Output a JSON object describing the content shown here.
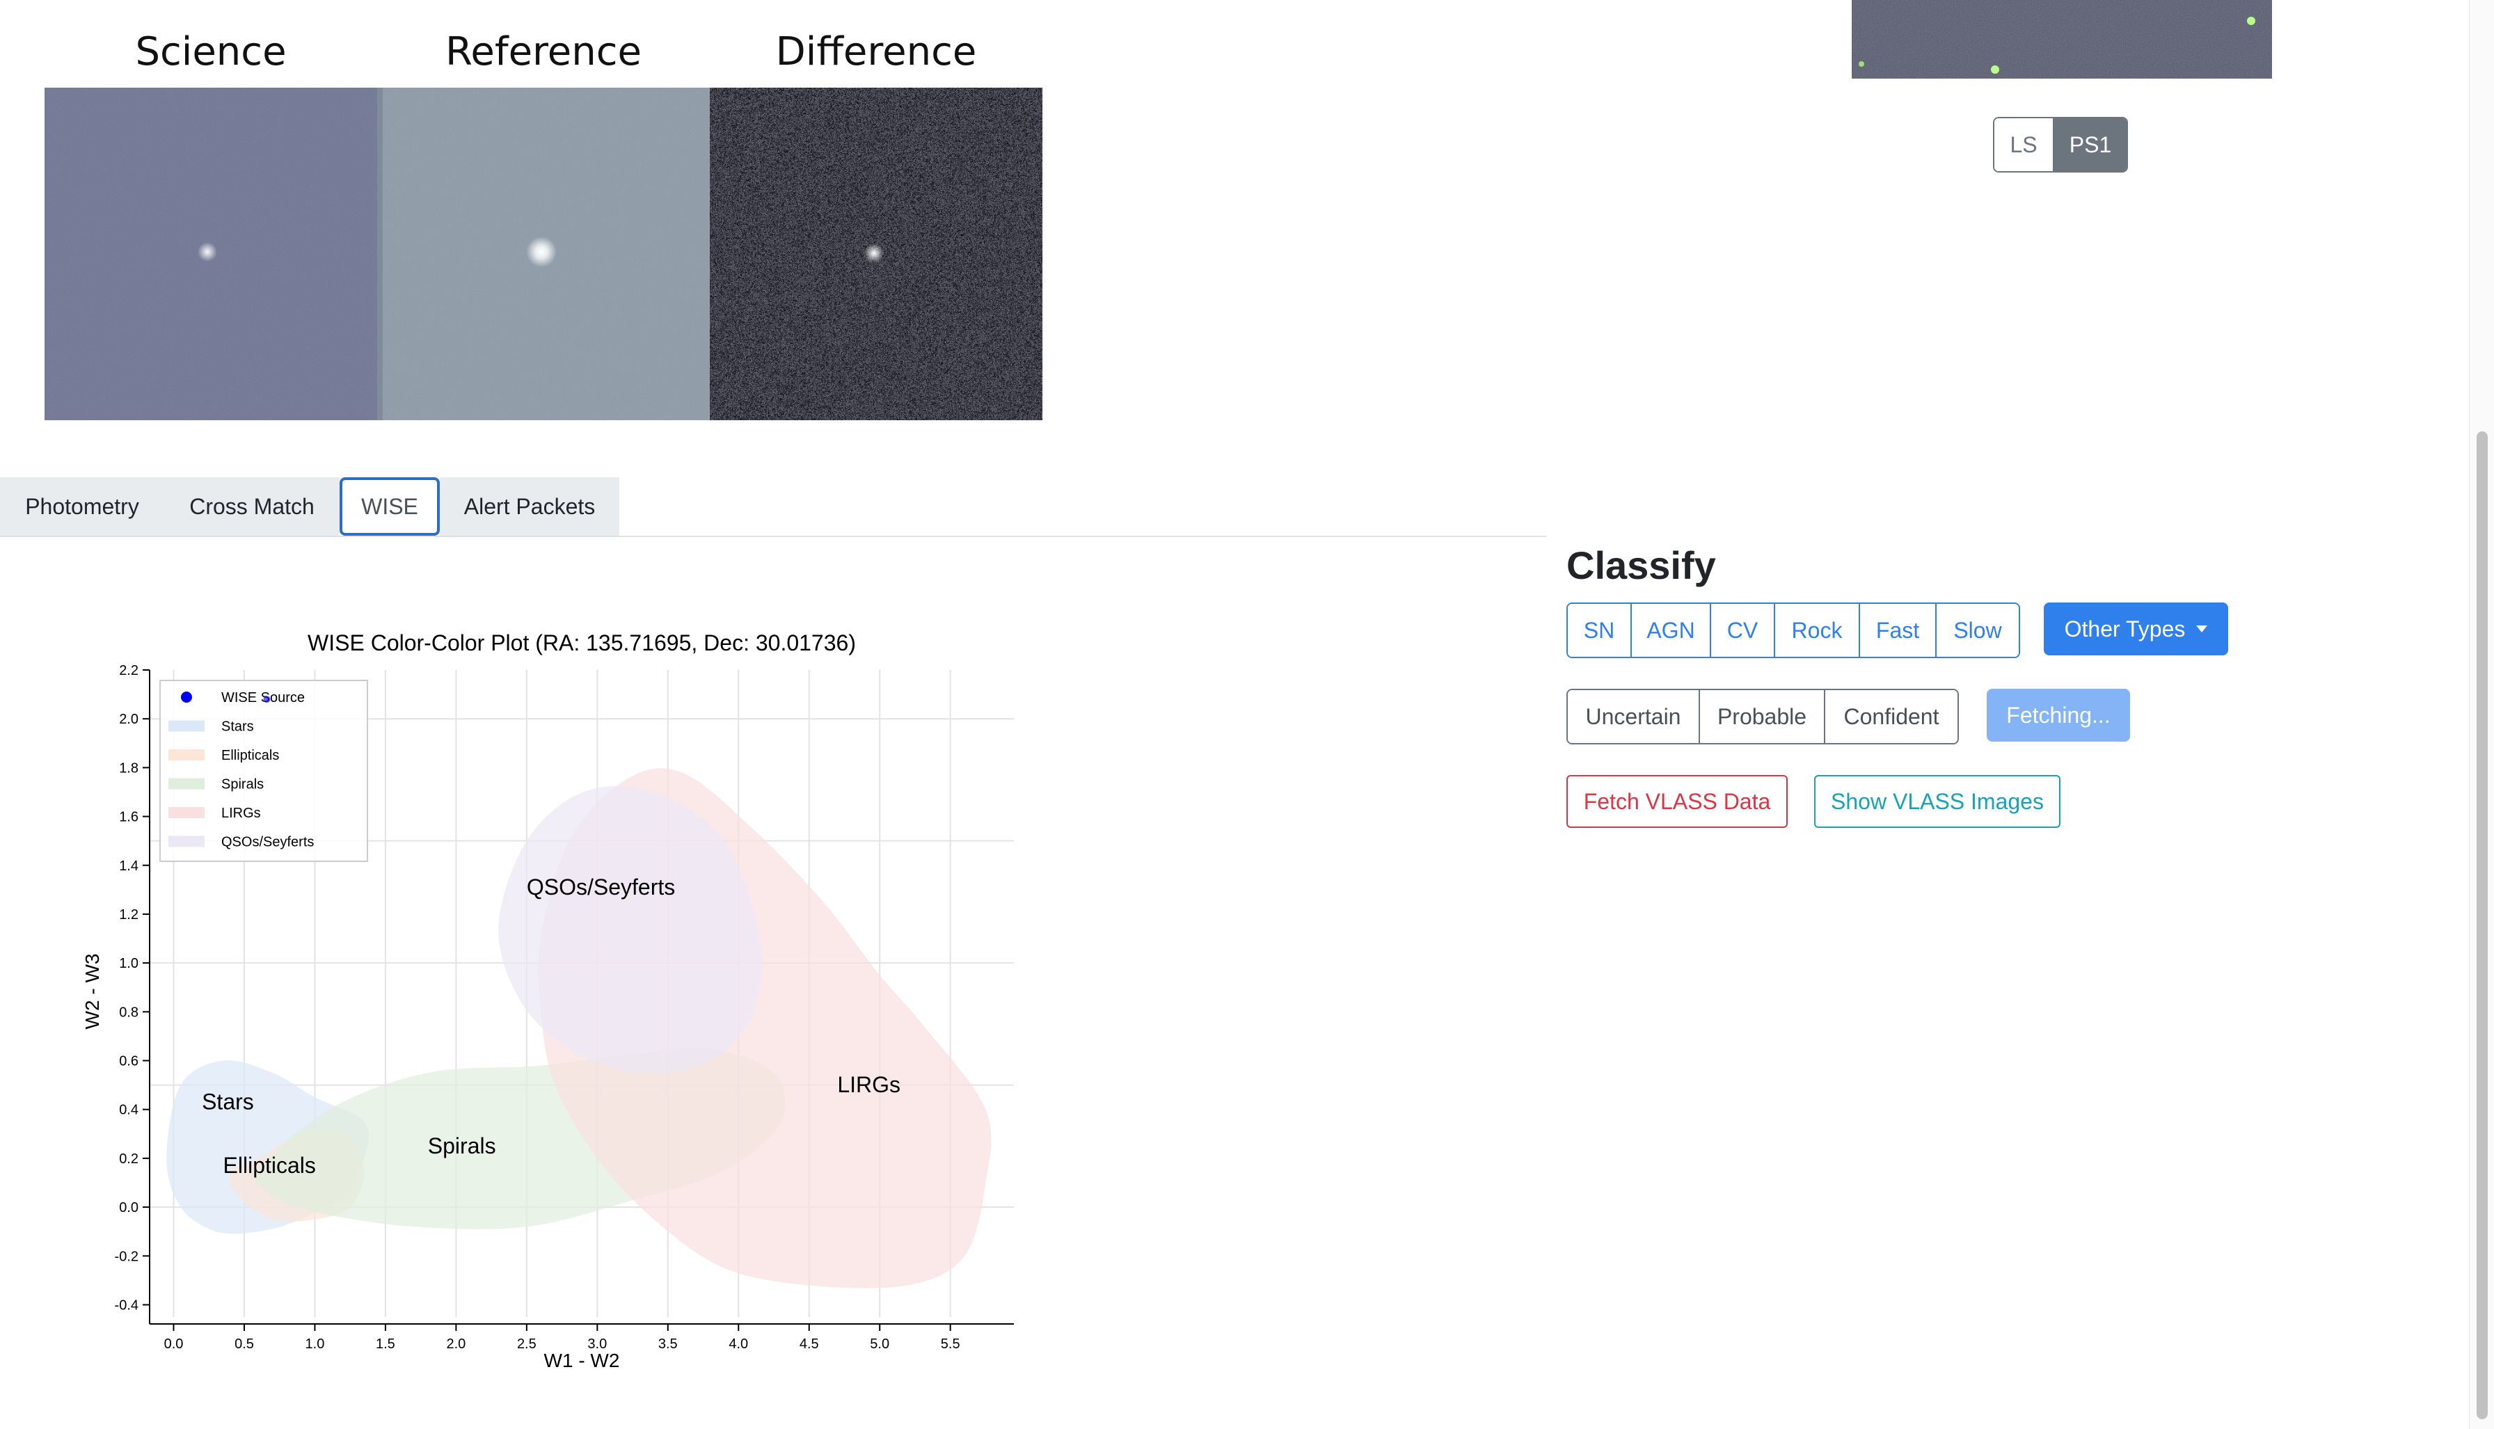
{
  "cutouts": {
    "science_label": "Science",
    "reference_label": "Reference",
    "difference_label": "Difference"
  },
  "survey_toggle": {
    "options": [
      "LS",
      "PS1"
    ],
    "selected": "PS1"
  },
  "tabs": [
    {
      "label": "Photometry",
      "active": false
    },
    {
      "label": "Cross Match",
      "active": false
    },
    {
      "label": "WISE",
      "active": true
    },
    {
      "label": "Alert Packets",
      "active": false
    }
  ],
  "classify": {
    "title": "Classify",
    "types": [
      "SN",
      "AGN",
      "CV",
      "Rock",
      "Fast",
      "Slow"
    ],
    "other_types_label": "Other Types",
    "confidence": [
      "Uncertain",
      "Probable",
      "Confident"
    ],
    "fetching_label": "Fetching...",
    "fetch_vlass_label": "Fetch VLASS Data",
    "show_vlass_label": "Show VLASS Images"
  },
  "colors": {
    "primary": "#2f80ed",
    "danger": "#dc3545",
    "info": "#17a2b8",
    "secondary": "#6c757d",
    "wise_source": "#0000ff"
  },
  "chart_data": {
    "type": "scatter",
    "title": "WISE Color-Color Plot (RA: 135.71695, Dec: 30.01736)",
    "xlabel": "W1 - W2",
    "ylabel": "W2 - W3",
    "xlim": [
      -0.17,
      5.95
    ],
    "ylim": [
      -0.45,
      2.2
    ],
    "x_ticks": [
      "0.0",
      "0.5",
      "1.0",
      "1.5",
      "2.0",
      "2.5",
      "3.0",
      "3.5",
      "4.0",
      "4.5",
      "5.0",
      "5.5"
    ],
    "y_ticks": [
      "2.2",
      "2.0",
      "1.8",
      "1.6",
      "1.4",
      "1.2",
      "1.0",
      "0.8",
      "0.6",
      "0.4",
      "0.2",
      "0.0",
      "-0.2",
      "-0.4"
    ],
    "grid": true,
    "legend_position": "top-left",
    "legend": [
      {
        "label": "WISE Source",
        "color": "#0000ff",
        "marker": "dot"
      },
      {
        "label": "Stars",
        "color": "#dbe8f7",
        "marker": "rect"
      },
      {
        "label": "Ellipticals",
        "color": "#fbe6d8",
        "marker": "rect"
      },
      {
        "label": "Spirals",
        "color": "#dfeedd",
        "marker": "rect"
      },
      {
        "label": "LIRGs",
        "color": "#f9dfdf",
        "marker": "rect"
      },
      {
        "label": "QSOs/Seyferts",
        "color": "#ebe7f5",
        "marker": "rect"
      }
    ],
    "regions": [
      {
        "name": "Stars",
        "label_x": 0.2,
        "label_y": 0.4,
        "color": "#dbe8f7",
        "outline": [
          [
            -0.05,
            0.2
          ],
          [
            0.05,
            0.5
          ],
          [
            0.35,
            0.6
          ],
          [
            0.7,
            0.55
          ],
          [
            1.0,
            0.45
          ],
          [
            1.35,
            0.35
          ],
          [
            1.35,
            0.2
          ],
          [
            1.2,
            0.05
          ],
          [
            0.9,
            -0.05
          ],
          [
            0.6,
            -0.1
          ],
          [
            0.3,
            -0.1
          ],
          [
            0.05,
            0.0
          ]
        ]
      },
      {
        "name": "Ellipticals",
        "label_x": 0.35,
        "label_y": 0.14,
        "color": "#fbe6d8",
        "outline": [
          [
            0.4,
            0.15
          ],
          [
            0.6,
            0.2
          ],
          [
            0.9,
            0.3
          ],
          [
            1.2,
            0.3
          ],
          [
            1.35,
            0.15
          ],
          [
            1.25,
            0.0
          ],
          [
            1.0,
            -0.05
          ],
          [
            0.7,
            -0.05
          ],
          [
            0.45,
            0.05
          ]
        ]
      },
      {
        "name": "Spirals",
        "label_x": 1.8,
        "label_y": 0.22,
        "color": "#dfeedd",
        "outline": [
          [
            0.6,
            0.15
          ],
          [
            1.1,
            0.4
          ],
          [
            1.8,
            0.55
          ],
          [
            2.6,
            0.58
          ],
          [
            3.3,
            0.63
          ],
          [
            3.8,
            0.65
          ],
          [
            4.25,
            0.55
          ],
          [
            4.3,
            0.35
          ],
          [
            3.9,
            0.15
          ],
          [
            3.2,
            0.02
          ],
          [
            2.5,
            -0.08
          ],
          [
            1.7,
            -0.08
          ],
          [
            1.0,
            -0.02
          ],
          [
            0.7,
            0.05
          ]
        ]
      },
      {
        "name": "LIRGs",
        "label_x": 4.7,
        "label_y": 0.47,
        "color": "#f9dfdf",
        "outline": [
          [
            2.6,
            1.1
          ],
          [
            2.8,
            1.5
          ],
          [
            3.2,
            1.75
          ],
          [
            3.6,
            1.78
          ],
          [
            4.1,
            1.55
          ],
          [
            4.6,
            1.25
          ],
          [
            5.0,
            0.95
          ],
          [
            5.3,
            0.75
          ],
          [
            5.75,
            0.4
          ],
          [
            5.75,
            0.1
          ],
          [
            5.6,
            -0.2
          ],
          [
            5.2,
            -0.32
          ],
          [
            4.5,
            -0.32
          ],
          [
            3.9,
            -0.25
          ],
          [
            3.4,
            -0.05
          ],
          [
            3.0,
            0.2
          ],
          [
            2.7,
            0.5
          ],
          [
            2.6,
            0.8
          ]
        ]
      },
      {
        "name": "QSOs/Seyferts",
        "label_x": 2.5,
        "label_y": 1.28,
        "color": "#ebe7f5",
        "outline": [
          [
            2.3,
            1.15
          ],
          [
            2.5,
            1.5
          ],
          [
            2.9,
            1.7
          ],
          [
            3.4,
            1.7
          ],
          [
            3.9,
            1.5
          ],
          [
            4.15,
            1.1
          ],
          [
            4.1,
            0.8
          ],
          [
            3.8,
            0.6
          ],
          [
            3.3,
            0.55
          ],
          [
            2.8,
            0.65
          ],
          [
            2.45,
            0.85
          ]
        ]
      }
    ],
    "points": [
      {
        "series": "WISE Source",
        "x": 0.66,
        "y": 2.08
      }
    ]
  }
}
